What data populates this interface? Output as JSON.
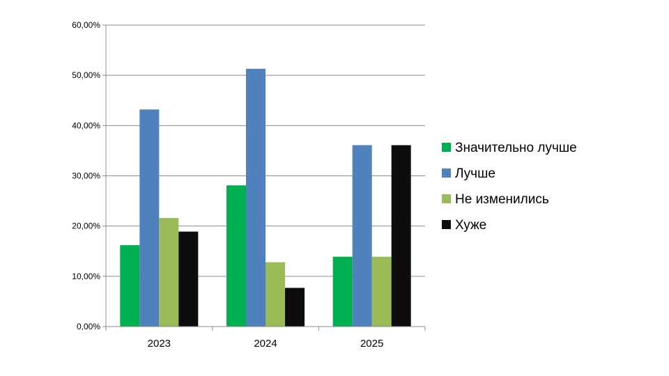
{
  "chart_data": {
    "type": "bar",
    "title": "",
    "xlabel": "",
    "ylabel": "",
    "categories": [
      "2023",
      "2024",
      "2025"
    ],
    "ylim": [
      0,
      60
    ],
    "yticks": [
      "0,00%",
      "10,00%",
      "20,00%",
      "30,00%",
      "40,00%",
      "50,00%",
      "60,00%"
    ],
    "grid": true,
    "legend_position": "right",
    "series": [
      {
        "name": "Значительно лучше",
        "color": "#00b050",
        "values": [
          16.2,
          28.1,
          13.9
        ]
      },
      {
        "name": "Лучше",
        "color": "#4f81bd",
        "values": [
          43.2,
          51.3,
          36.1
        ]
      },
      {
        "name": "Не изменились",
        "color": "#9bbb59",
        "values": [
          21.6,
          12.8,
          13.9
        ]
      },
      {
        "name": "Хуже",
        "color": "#0d0d0d",
        "values": [
          18.9,
          7.7,
          36.1
        ]
      }
    ]
  }
}
